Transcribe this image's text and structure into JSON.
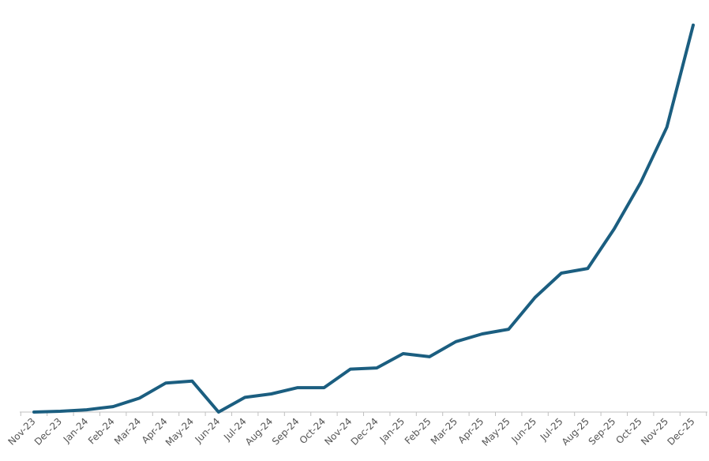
{
  "chart_data": {
    "type": "line",
    "title": "",
    "xlabel": "",
    "ylabel": "",
    "grid": false,
    "legend": "none",
    "categories": [
      "Nov-23",
      "Dec-23",
      "Jan-24",
      "Feb-24",
      "Mar-24",
      "Apr-24",
      "May-24",
      "Jun-24",
      "Jul-24",
      "Aug-24",
      "Sep-24",
      "Oct-24",
      "Nov-24",
      "Dec-24",
      "Jan-25",
      "Feb-25",
      "Mar-25",
      "Apr-25",
      "May-25",
      "Jun-25",
      "Jul-25",
      "Aug-25",
      "Sep-25",
      "Oct-25",
      "Nov-25",
      "Dec-25"
    ],
    "series": [
      {
        "values": [
          0,
          0.2,
          0.6,
          1.4,
          3.6,
          7.5,
          8.0,
          0,
          3.8,
          4.7,
          6.3,
          6.3,
          11.1,
          11.4,
          15.1,
          14.3,
          18.2,
          20.2,
          21.4,
          29.6,
          35.9,
          37.1,
          47.3,
          59.2,
          73.6,
          100
        ]
      }
    ],
    "ylim": [
      0,
      102
    ],
    "line_color": "#1b5e80",
    "axis_color": "#c0c0c0"
  }
}
